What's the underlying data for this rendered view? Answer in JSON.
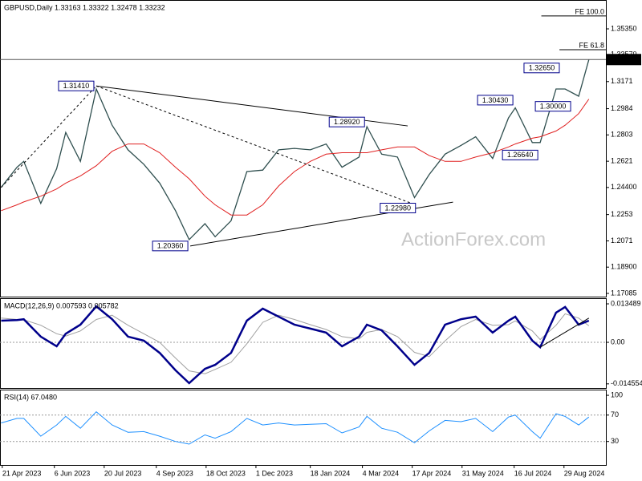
{
  "chart_data": [
    {
      "type": "line",
      "title": "GBPUSD,Daily  1.33163 1.33322 1.32478 1.33232",
      "watermark": "ActionForex.com",
      "x": [
        "2023-04-20",
        "2023-05-04",
        "2023-05-10",
        "2023-05-25",
        "2023-06-08",
        "2023-06-16",
        "2023-06-29",
        "2023-07-13",
        "2023-07-27",
        "2023-08-10",
        "2023-08-24",
        "2023-09-07",
        "2023-09-21",
        "2023-10-03",
        "2023-10-17",
        "2023-10-26",
        "2023-11-09",
        "2023-11-23",
        "2023-12-07",
        "2023-12-21",
        "2024-01-04",
        "2024-01-18",
        "2024-02-01",
        "2024-02-15",
        "2024-03-01",
        "2024-03-08",
        "2024-03-21",
        "2024-04-04",
        "2024-04-19",
        "2024-05-02",
        "2024-05-16",
        "2024-05-30",
        "2024-06-12",
        "2024-06-27",
        "2024-07-11",
        "2024-07-17",
        "2024-08-01",
        "2024-08-08",
        "2024-08-22",
        "2024-08-30",
        "2024-09-11",
        "2024-09-20"
      ],
      "xlim": [
        "2023-04-19",
        "2024-10-05"
      ],
      "series": [
        {
          "color": "#2f4f4f",
          "width": 1.3,
          "values": [
            1.244,
            1.258,
            1.262,
            1.233,
            1.257,
            1.282,
            1.262,
            1.312,
            1.287,
            1.27,
            1.26,
            1.247,
            1.228,
            1.208,
            1.219,
            1.21,
            1.221,
            1.255,
            1.256,
            1.27,
            1.271,
            1.27,
            1.274,
            1.258,
            1.265,
            1.286,
            1.267,
            1.265,
            1.237,
            1.253,
            1.267,
            1.273,
            1.279,
            1.264,
            1.292,
            1.299,
            1.275,
            1.275,
            1.312,
            1.312,
            1.307,
            1.33232
          ]
        },
        {
          "color": "#e02020",
          "width": 1,
          "values": [
            1.228,
            1.232,
            1.234,
            1.238,
            1.243,
            1.247,
            1.252,
            1.259,
            1.269,
            1.274,
            1.274,
            1.268,
            1.258,
            1.25,
            1.238,
            1.232,
            1.225,
            1.225,
            1.232,
            1.245,
            1.255,
            1.262,
            1.267,
            1.268,
            1.268,
            1.268,
            1.27,
            1.272,
            1.272,
            1.266,
            1.262,
            1.262,
            1.265,
            1.268,
            1.272,
            1.274,
            1.278,
            1.279,
            1.283,
            1.287,
            1.295,
            1.305
          ]
        }
      ],
      "ylim": [
        1.16864,
        1.37343
      ],
      "yticks": [
        {
          "value": 1.3535,
          "label": "1.35350"
        },
        {
          "value": 1.3357,
          "label": "1.33570"
        },
        1.3171,
        1.2984,
        1.2803,
        1.2621,
        {
          "value": 1.244,
          "label": "1.24400"
        },
        1.2253,
        1.2071,
        {
          "value": 1.189,
          "label": "1.18900"
        },
        1.17085
      ],
      "annotations": [
        {
          "x": "2023-07-13",
          "y": 1.3141,
          "label": "1.31410"
        },
        {
          "x": "2023-10-04",
          "y": 1.2036,
          "label": "1.20360"
        },
        {
          "x": "2024-03-08",
          "y": 1.2892,
          "label": "1.28920"
        },
        {
          "x": "2024-04-22",
          "y": 1.2298,
          "label": "1.22980"
        },
        {
          "x": "2024-07-17",
          "y": 1.3043,
          "label": "1.30430"
        },
        {
          "x": "2024-08-08",
          "y": 1.2664,
          "label": "1.26640"
        },
        {
          "x": "2024-08-27",
          "y": 1.3265,
          "label": "1.32650"
        },
        {
          "x": "2024-09-06",
          "y": 1.3,
          "label": "1.30000"
        }
      ],
      "fib_levels": [
        {
          "label": "FE 100.0",
          "value": 1.3624,
          "from": "2024-08-09"
        },
        {
          "label": "FE 61.8",
          "value": 1.3391,
          "from": "2024-08-25"
        }
      ],
      "lines": [
        {
          "x": [
            "2023-07-13",
            "2024-04-13"
          ],
          "y": [
            1.3141,
            1.2865
          ],
          "dash": false
        },
        {
          "x": [
            "2023-07-13",
            "2024-04-19"
          ],
          "y": [
            1.3141,
            1.2323
          ],
          "dash": true
        },
        {
          "x": [
            "2023-04-20",
            "2023-07-13"
          ],
          "y": [
            1.244,
            1.3141
          ],
          "dash": true
        },
        {
          "x": [
            "2023-10-04",
            "2024-05-23"
          ],
          "y": [
            1.2036,
            1.2339
          ],
          "dash": false
        }
      ],
      "current_price": {
        "value": 1.33232,
        "label": "1.33232"
      }
    },
    {
      "type": "line",
      "title": "MACD(12,26,9) 0.007593 0.005782",
      "x": [
        "2023-04-20",
        "2023-05-04",
        "2023-05-10",
        "2023-05-25",
        "2023-06-08",
        "2023-06-16",
        "2023-06-29",
        "2023-07-13",
        "2023-07-27",
        "2023-08-10",
        "2023-08-24",
        "2023-09-07",
        "2023-09-21",
        "2023-10-03",
        "2023-10-17",
        "2023-10-26",
        "2023-11-09",
        "2023-11-23",
        "2023-12-07",
        "2023-12-21",
        "2024-01-04",
        "2024-01-18",
        "2024-02-01",
        "2024-02-15",
        "2024-03-01",
        "2024-03-08",
        "2024-03-21",
        "2024-04-04",
        "2024-04-19",
        "2024-05-02",
        "2024-05-16",
        "2024-05-30",
        "2024-06-12",
        "2024-06-27",
        "2024-07-11",
        "2024-07-17",
        "2024-08-01",
        "2024-08-08",
        "2024-08-22",
        "2024-08-30",
        "2024-09-11",
        "2024-09-20"
      ],
      "xlim": [
        "2023-04-19",
        "2024-10-05"
      ],
      "series": [
        {
          "color": "#a0a0a0",
          "width": 1,
          "values": [
            0.0085,
            0.008,
            0.0079,
            0.006,
            0.003,
            0.0022,
            0.004,
            0.008,
            0.0095,
            0.006,
            0.003,
            0,
            -0.0055,
            -0.01,
            -0.011,
            -0.0095,
            -0.007,
            -0.0005,
            0.007,
            0.0095,
            0.008,
            0.0062,
            0.0045,
            0.002,
            0.0012,
            0.0035,
            0.0045,
            0.002,
            -0.0035,
            -0.005,
            0.0005,
            0.0055,
            0.008,
            0.006,
            0.0062,
            0.0075,
            0.004,
            0.001,
            0.006,
            0.01,
            0.0085,
            0.005782
          ]
        },
        {
          "color": "#00008b",
          "width": 2.5,
          "values": [
            0.0076,
            0.0078,
            0.0081,
            0.002,
            -0.0014,
            0.003,
            0.0062,
            0.0126,
            0.0081,
            0.002,
            0.0006,
            -0.0037,
            -0.0098,
            -0.0143,
            -0.0093,
            -0.0079,
            -0.0037,
            0.0076,
            0.0118,
            0.009,
            0.0062,
            0.0048,
            0.0034,
            -0.0014,
            0.002,
            0.0062,
            0.0042,
            -0.0014,
            -0.0079,
            -0.0037,
            0.0062,
            0.0081,
            0.009,
            0.0034,
            0.0076,
            0.009,
            0.0006,
            -0.0017,
            0.0104,
            0.0124,
            0.0062,
            0.007593
          ]
        }
      ],
      "ylim": [
        -0.01601,
        0.01546
      ],
      "yticks": [
        0.013489,
        {
          "value": 0,
          "label": "0.00"
        },
        -0.014554
      ],
      "levels": [
        0
      ],
      "lines": [
        {
          "x": [
            "2024-08-08",
            "2024-09-20"
          ],
          "y": [
            -0.0017,
            0.0085
          ],
          "dash": false
        }
      ]
    },
    {
      "type": "line",
      "title": "RSI(14) 67.0480",
      "x": [
        "2023-04-20",
        "2023-05-04",
        "2023-05-10",
        "2023-05-25",
        "2023-06-08",
        "2023-06-16",
        "2023-06-29",
        "2023-07-13",
        "2023-07-27",
        "2023-08-10",
        "2023-08-24",
        "2023-09-07",
        "2023-09-21",
        "2023-10-03",
        "2023-10-17",
        "2023-10-26",
        "2023-11-09",
        "2023-11-23",
        "2023-12-07",
        "2023-12-21",
        "2024-01-04",
        "2024-01-18",
        "2024-02-01",
        "2024-02-15",
        "2024-03-01",
        "2024-03-08",
        "2024-03-21",
        "2024-04-04",
        "2024-04-19",
        "2024-05-02",
        "2024-05-16",
        "2024-05-30",
        "2024-06-12",
        "2024-06-27",
        "2024-07-11",
        "2024-07-17",
        "2024-08-01",
        "2024-08-08",
        "2024-08-22",
        "2024-08-30",
        "2024-09-11",
        "2024-09-20"
      ],
      "xlim": [
        "2023-04-19",
        "2024-10-05"
      ],
      "series": [
        {
          "color": "#1e90ff",
          "width": 1,
          "values": [
            58,
            65,
            65,
            38,
            55,
            68,
            50,
            75,
            55,
            44,
            45,
            38,
            30,
            26,
            40,
            35,
            45,
            65,
            55,
            58,
            55,
            56,
            57,
            43,
            52,
            68,
            50,
            44,
            28,
            46,
            62,
            60,
            65,
            45,
            67,
            70,
            45,
            35,
            72,
            68,
            55,
            67.048
          ]
        }
      ],
      "ylim": [
        -5.6,
        108.6
      ],
      "yticks": [
        100,
        70,
        30
      ],
      "levels": [
        70,
        30
      ],
      "xticks": [
        {
          "value": "2023-04-21",
          "label": "21 Apr 2023"
        },
        {
          "value": "2023-06-06",
          "label": "6 Jun 2023"
        },
        {
          "value": "2023-07-20",
          "label": "20 Jul 2023"
        },
        {
          "value": "2023-09-04",
          "label": "4 Sep 2023"
        },
        {
          "value": "2023-10-18",
          "label": "18 Oct 2023"
        },
        {
          "value": "2023-12-01",
          "label": "1 Dec 2023"
        },
        {
          "value": "2024-01-18",
          "label": "18 Jan 2024"
        },
        {
          "value": "2024-03-04",
          "label": "4 Mar 2024"
        },
        {
          "value": "2024-04-17",
          "label": "17 Apr 2024"
        },
        {
          "value": "2024-05-31",
          "label": "31 May 2024"
        },
        {
          "value": "2024-07-16",
          "label": "16 Jul 2024"
        },
        {
          "value": "2024-08-29",
          "label": "29 Aug 2024"
        }
      ]
    }
  ]
}
